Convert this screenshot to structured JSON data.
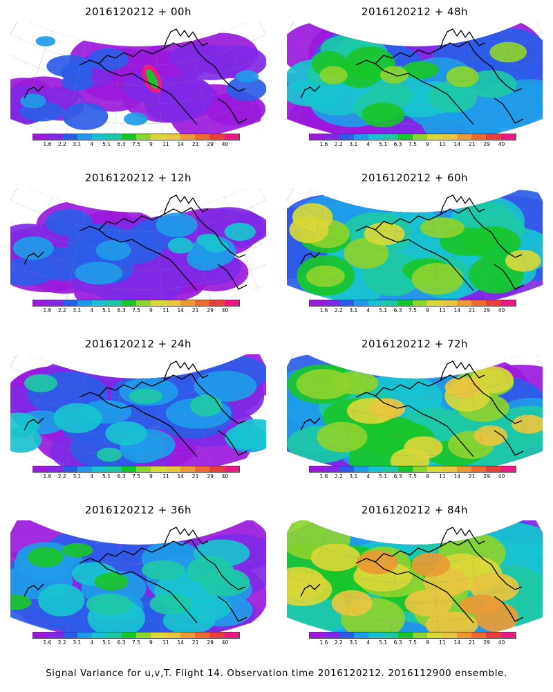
{
  "footer": "Signal Variance for u,v,T. Flight 14. Observation time 2016120212. 2016112900 ensemble.",
  "colorbar": {
    "labels": [
      "1.6",
      "2.2",
      "3.1",
      "4",
      "5.1",
      "6.3",
      "7.5",
      "9",
      "11",
      "14",
      "21",
      "29",
      "40"
    ],
    "colors": [
      "#9a19dc",
      "#8028e6",
      "#2b5ce8",
      "#1e9be8",
      "#17c3d0",
      "#1cc9a6",
      "#18c62a",
      "#8cd42e",
      "#d8d837",
      "#e9c63f",
      "#ec9a35",
      "#ef6a33",
      "#e93e40",
      "#ea1a82"
    ]
  },
  "panels": [
    {
      "id": "p00",
      "title": "2016120212 + 00h",
      "level": 0.0,
      "hotspot": true
    },
    {
      "id": "p12",
      "title": "2016120212 + 12h",
      "level": 0.15
    },
    {
      "id": "p24",
      "title": "2016120212 + 24h",
      "level": 0.25
    },
    {
      "id": "p36",
      "title": "2016120212 + 36h",
      "level": 0.35
    },
    {
      "id": "p48",
      "title": "2016120212 + 48h",
      "level": 0.45
    },
    {
      "id": "p60",
      "title": "2016120212 + 60h",
      "level": 0.6
    },
    {
      "id": "p72",
      "title": "2016120212 + 72h",
      "level": 0.7
    },
    {
      "id": "p84",
      "title": "2016120212 + 84h",
      "level": 0.8
    }
  ]
}
